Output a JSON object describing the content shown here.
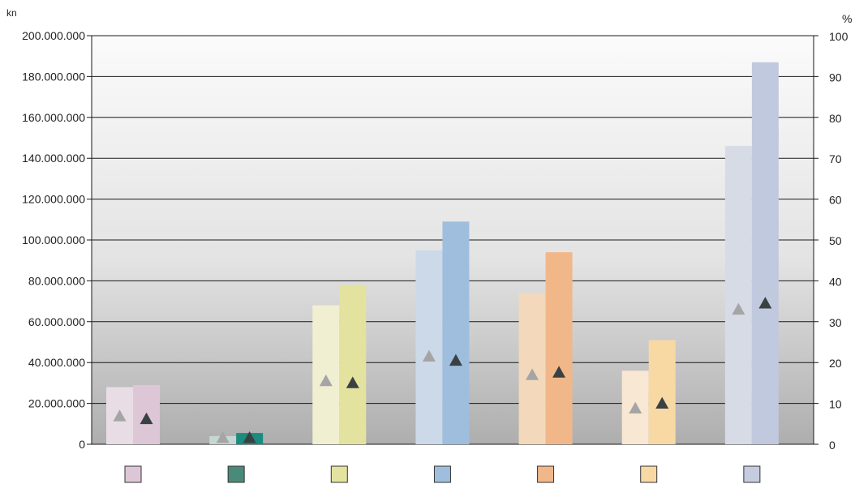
{
  "chart_data": {
    "type": "bar",
    "y_left_unit": "kn",
    "y_right_unit": "%",
    "y_left_ticks": [
      "0",
      "20.000.000",
      "40.000.000",
      "60.000.000",
      "80.000.000",
      "100.000.000",
      "120.000.000",
      "140.000.000",
      "160.000.000",
      "180.000.000",
      "200.000.000"
    ],
    "y_right_ticks": [
      "0",
      "10",
      "20",
      "30",
      "40",
      "50",
      "60",
      "70",
      "80",
      "90",
      "100"
    ],
    "ylim_left": [
      0,
      200000000
    ],
    "ylim_right": [
      0,
      100
    ],
    "grid": true,
    "legend": "bottom",
    "groups": [
      {
        "values": [
          28000000,
          29000000
        ],
        "percent": [
          6.9,
          6.2
        ],
        "colors": [
          "#e8dce5",
          "#ddc7d6"
        ],
        "legend_color": "#ddc7d6"
      },
      {
        "values": [
          4000000,
          5500000
        ],
        "percent": [
          1.6,
          1.6
        ],
        "colors": [
          "#c5d6d3",
          "#1a8c80"
        ],
        "legend_color": "#4a8a7a"
      },
      {
        "values": [
          68000000,
          78000000
        ],
        "percent": [
          15.5,
          15.0
        ],
        "colors": [
          "#f1efd2",
          "#e3e39f"
        ],
        "legend_color": "#e3e39f"
      },
      {
        "values": [
          95000000,
          109000000
        ],
        "percent": [
          21.5,
          20.5
        ],
        "colors": [
          "#ccd9e8",
          "#9fbede"
        ],
        "legend_color": "#9fbede"
      },
      {
        "values": [
          74000000,
          94000000
        ],
        "percent": [
          17.0,
          17.6
        ],
        "colors": [
          "#f3d8bb",
          "#f2b789"
        ],
        "legend_color": "#f2b789"
      },
      {
        "values": [
          36000000,
          51000000
        ],
        "percent": [
          8.8,
          10.0
        ],
        "colors": [
          "#f8e7d2",
          "#f8d9a4"
        ],
        "legend_color": "#f8d9a4"
      },
      {
        "values": [
          146000000,
          187000000
        ],
        "percent": [
          33.0,
          34.5
        ],
        "colors": [
          "#d7dbe6",
          "#c1c9df"
        ],
        "legend_color": "#c5ccdf"
      }
    ],
    "marker_colors": [
      "#a5a5a5",
      "#3a4143"
    ]
  }
}
